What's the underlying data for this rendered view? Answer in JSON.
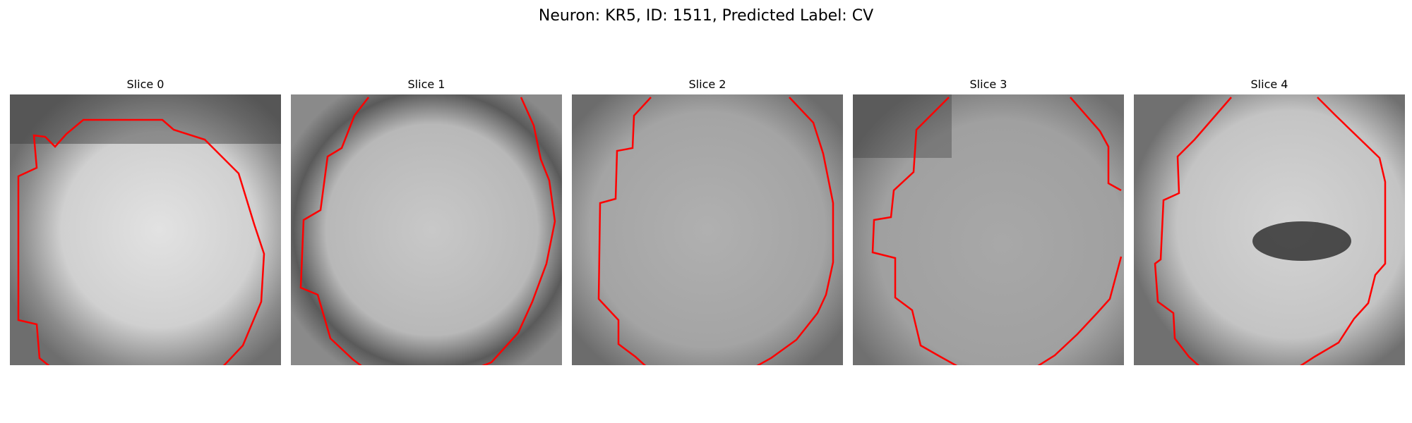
{
  "figure": {
    "title": "Neuron: KR5, ID: 1511, Predicted Label: CV"
  },
  "panels": [
    {
      "label": "Slice 0"
    },
    {
      "label": "Slice 1"
    },
    {
      "label": "Slice 2"
    },
    {
      "label": "Slice 3"
    },
    {
      "label": "Slice 4"
    }
  ],
  "colors": {
    "contour": "#ff0000"
  }
}
